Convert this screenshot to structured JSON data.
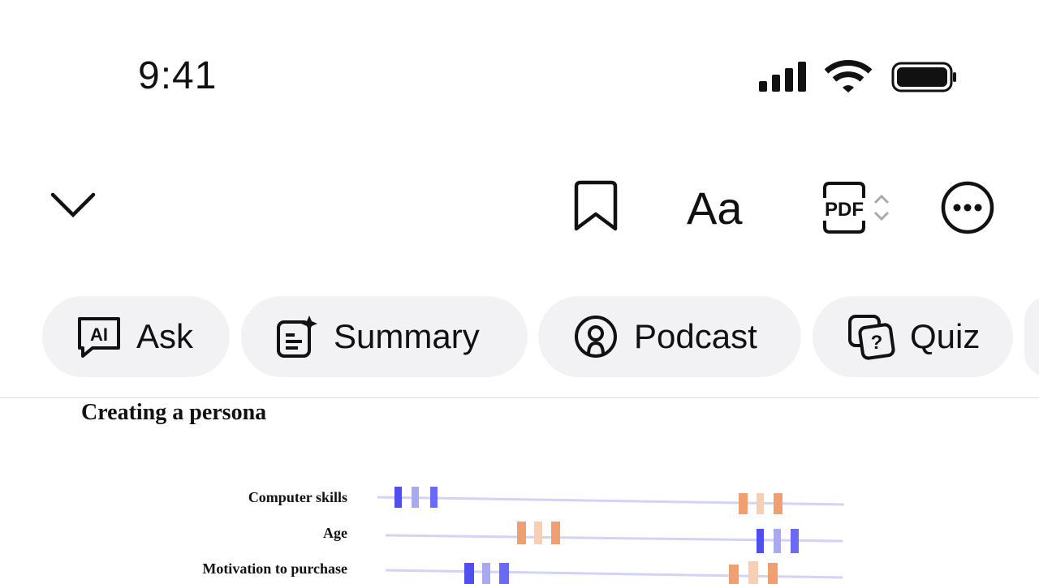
{
  "status_bar": {
    "time": "9:41"
  },
  "toolbar": {
    "font_button": "Aa",
    "pdf_icon": "PDF"
  },
  "actions": [
    "Ask",
    "Summary",
    "Podcast",
    "Quiz"
  ],
  "document": {
    "heading": "Creating a persona",
    "rows": [
      "Computer skills",
      "Age",
      "Motivation to purchase"
    ]
  }
}
